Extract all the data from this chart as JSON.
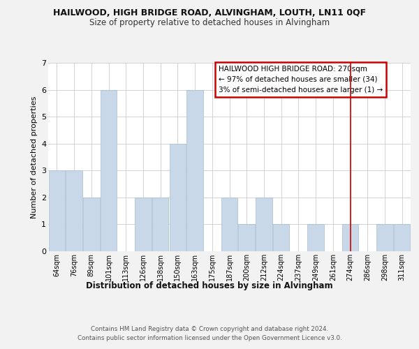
{
  "title": "HAILWOOD, HIGH BRIDGE ROAD, ALVINGHAM, LOUTH, LN11 0QF",
  "subtitle": "Size of property relative to detached houses in Alvingham",
  "xlabel": "Distribution of detached houses by size in Alvingham",
  "ylabel": "Number of detached properties",
  "bar_labels": [
    "64sqm",
    "76sqm",
    "89sqm",
    "101sqm",
    "113sqm",
    "126sqm",
    "138sqm",
    "150sqm",
    "163sqm",
    "175sqm",
    "187sqm",
    "200sqm",
    "212sqm",
    "224sqm",
    "237sqm",
    "249sqm",
    "261sqm",
    "274sqm",
    "286sqm",
    "298sqm",
    "311sqm"
  ],
  "bar_values": [
    3,
    3,
    2,
    6,
    0,
    2,
    2,
    4,
    6,
    0,
    2,
    1,
    2,
    1,
    0,
    1,
    0,
    1,
    0,
    1,
    1
  ],
  "bar_color": "#c8d8e8",
  "bar_edge_color": "#a8bece",
  "vline_x_idx": 17,
  "vline_color": "#cc0000",
  "annotation_line1": "HAILWOOD HIGH BRIDGE ROAD: 270sqm",
  "annotation_line2": "← 97% of detached houses are smaller (34)",
  "annotation_line3": "3% of semi-detached houses are larger (1) →",
  "annotation_box_color": "#cc0000",
  "annotation_box_bg": "#ffffff",
  "ylim": [
    0,
    7
  ],
  "yticks": [
    0,
    1,
    2,
    3,
    4,
    5,
    6,
    7
  ],
  "footer_line1": "Contains HM Land Registry data © Crown copyright and database right 2024.",
  "footer_line2": "Contains public sector information licensed under the Open Government Licence v3.0.",
  "bg_color": "#f2f2f2",
  "plot_bg_color": "#ffffff",
  "grid_color": "#cccccc"
}
